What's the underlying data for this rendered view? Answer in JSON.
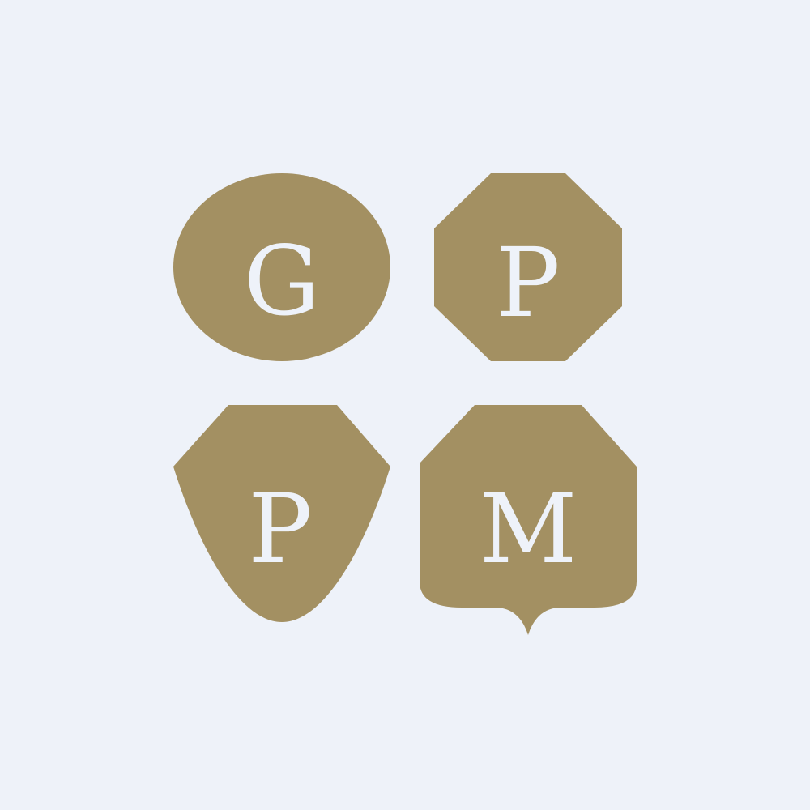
{
  "logo": {
    "background_color": "#EEF2F9",
    "shape_color": "#A39062",
    "letter_color": "#EEF2F9",
    "badges": [
      {
        "shape": "oval",
        "letter": "G"
      },
      {
        "shape": "octagon",
        "letter": "P"
      },
      {
        "shape": "shield",
        "letter": "P"
      },
      {
        "shape": "speech-bubble",
        "letter": "M"
      }
    ]
  }
}
